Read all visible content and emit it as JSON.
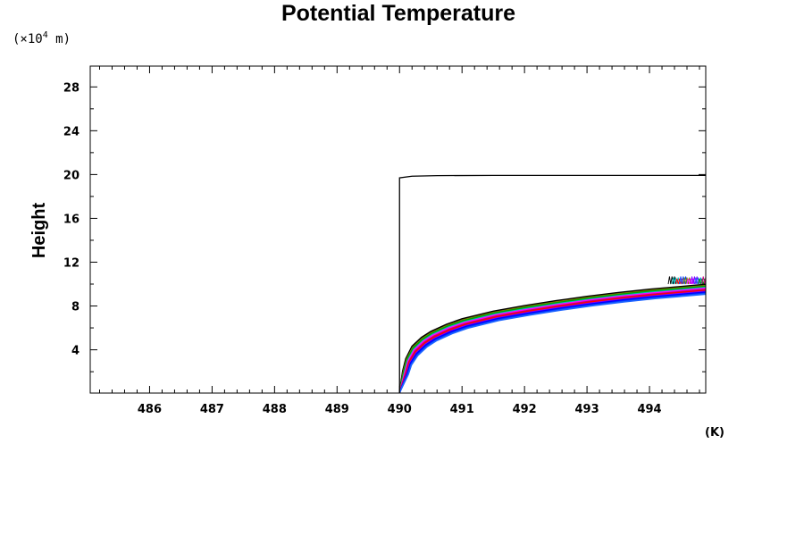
{
  "chart_data": {
    "type": "line",
    "title": "Potential Temperature",
    "xlabel": "(K)",
    "ylabel": "Height",
    "yunit_prefix": "(×10",
    "yunit_exp": "4",
    "yunit_suffix": " m)",
    "xlim": [
      485.05,
      494.9
    ],
    "ylim": [
      0.05,
      29.9
    ],
    "xticks": [
      486,
      487,
      488,
      489,
      490,
      491,
      492,
      493,
      494
    ],
    "yticks": [
      4,
      8,
      12,
      16,
      20,
      24,
      28
    ],
    "grid": false,
    "series": [
      {
        "color": "#000000",
        "x": [
          490.0,
          490.0,
          490.2,
          490.6,
          491.5,
          492.5,
          493.5,
          494.9
        ],
        "y": [
          0.1,
          19.7,
          19.85,
          19.9,
          19.92,
          19.92,
          19.92,
          19.92
        ]
      }
    ],
    "ensemble": {
      "colors": [
        "#000000",
        "#808000",
        "#00a000",
        "#00c0c0",
        "#ff00ff",
        "#c00080",
        "#ff0000",
        "#8000ff",
        "#0000ff",
        "#0040ff",
        "#1e64ff"
      ],
      "base_x": [
        490.0,
        490.05,
        490.1,
        490.2,
        490.35,
        490.5,
        490.75,
        491.0,
        491.5,
        492.0,
        492.5,
        493.0,
        493.5,
        494.0,
        494.5,
        494.9
      ],
      "base_y": [
        0.1,
        1.9,
        2.9,
        3.9,
        4.7,
        5.25,
        5.9,
        6.4,
        7.1,
        7.6,
        8.05,
        8.45,
        8.8,
        9.1,
        9.35,
        9.55
      ],
      "member_count": 26,
      "member_x_offset_max": 0.09,
      "member_y_offset_max": 0.85,
      "top_wiggle_x_range": [
        494.3,
        494.9
      ],
      "top_wiggle_y_range": [
        10.0,
        10.7
      ]
    }
  }
}
